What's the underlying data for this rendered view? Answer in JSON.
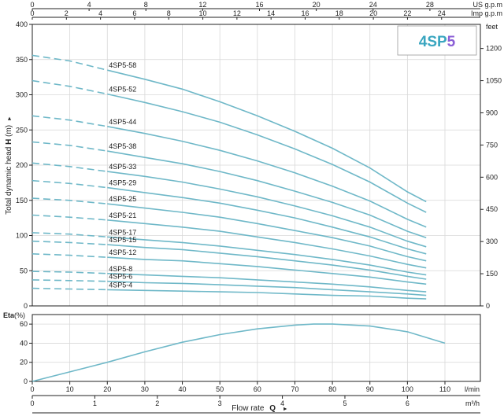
{
  "chart_data": [
    {
      "type": "line",
      "id": "head",
      "title_part1": "4SP",
      "title_part2": "5",
      "ylabel": "Total dynamic head",
      "ylabel_bold": "H",
      "ylabel_unit": "(m)",
      "ylim": [
        0,
        400
      ],
      "yticks": [
        0,
        50,
        100,
        150,
        200,
        250,
        300,
        350,
        400
      ],
      "xlim": [
        0,
        110
      ],
      "xticks": [
        0,
        10,
        20,
        30,
        40,
        50,
        60,
        70,
        80,
        90,
        100,
        110
      ],
      "x_unit": "l/min",
      "right_axis": {
        "label": "feet",
        "ticks": [
          0,
          150,
          300,
          450,
          600,
          750,
          900,
          1050,
          1200
        ]
      },
      "top_axes": [
        {
          "label": "US g.p.m",
          "max": 28,
          "ticks": [
            0,
            4,
            8,
            12,
            16,
            20,
            24,
            28
          ]
        },
        {
          "label": "Imp g.p.m",
          "max": 24,
          "ticks": [
            0,
            2,
            4,
            6,
            8,
            10,
            12,
            14,
            16,
            18,
            20,
            22,
            24
          ]
        }
      ],
      "dashed_until_x": 20,
      "x": [
        0,
        10,
        20,
        30,
        40,
        50,
        60,
        70,
        80,
        90,
        100,
        105
      ],
      "series": [
        {
          "name": "4SP5-58",
          "values": [
            356,
            348,
            335,
            322,
            308,
            290,
            270,
            248,
            224,
            196,
            162,
            148
          ]
        },
        {
          "name": "4SP5-52",
          "values": [
            320,
            312,
            301,
            289,
            276,
            261,
            243,
            223,
            201,
            176,
            146,
            133
          ]
        },
        {
          "name": "4SP5-44",
          "values": [
            270,
            264,
            255,
            245,
            234,
            221,
            206,
            189,
            170,
            149,
            123,
            112
          ]
        },
        {
          "name": "4SP5-38",
          "values": [
            233,
            228,
            220,
            211,
            202,
            191,
            178,
            163,
            147,
            129,
            106,
            97
          ]
        },
        {
          "name": "4SP5-33",
          "values": [
            203,
            198,
            191,
            184,
            176,
            166,
            155,
            142,
            128,
            112,
            92,
            84
          ]
        },
        {
          "name": "4SP5-29",
          "values": [
            178,
            174,
            168,
            161,
            154,
            146,
            136,
            125,
            112,
            98,
            81,
            74
          ]
        },
        {
          "name": "4SP5-25",
          "values": [
            153,
            150,
            145,
            139,
            133,
            126,
            117,
            107,
            97,
            85,
            70,
            64
          ]
        },
        {
          "name": "4SP5-21",
          "values": [
            129,
            126,
            122,
            117,
            112,
            106,
            98,
            90,
            81,
            71,
            59,
            54
          ]
        },
        {
          "name": "4SP5-17",
          "values": [
            104,
            102,
            98,
            94,
            90,
            85,
            79,
            73,
            66,
            58,
            48,
            44
          ]
        },
        {
          "name": "4SP5-15",
          "values": [
            92,
            90,
            87,
            83,
            80,
            75,
            70,
            64,
            58,
            51,
            42,
            38
          ]
        },
        {
          "name": "4SP5-12",
          "values": [
            74,
            72,
            69,
            66,
            64,
            60,
            56,
            51,
            46,
            41,
            34,
            31
          ]
        },
        {
          "name": "4SP5-8",
          "values": [
            49,
            48,
            46,
            44,
            42,
            40,
            37,
            34,
            31,
            27,
            22,
            20
          ]
        },
        {
          "name": "4SP5-6",
          "values": [
            37,
            36,
            35,
            33,
            32,
            30,
            28,
            26,
            23,
            20,
            17,
            15
          ]
        },
        {
          "name": "4SP5-4",
          "values": [
            25,
            24,
            23,
            22,
            21,
            20,
            19,
            17,
            15,
            14,
            11,
            10
          ]
        }
      ]
    },
    {
      "type": "line",
      "id": "efficiency",
      "ylabel": "Eta",
      "ylabel_unit": "(%)",
      "ylim": [
        0,
        70
      ],
      "yticks": [
        0,
        20,
        40,
        60
      ],
      "xlim": [
        0,
        110
      ],
      "xticks": [
        0,
        10,
        20,
        30,
        40,
        50,
        60,
        70,
        80,
        90,
        100,
        110
      ],
      "x_unit": "l/min",
      "x": [
        0,
        10,
        20,
        30,
        40,
        50,
        60,
        70,
        75,
        80,
        90,
        100,
        105,
        110
      ],
      "values": [
        0,
        10,
        20,
        31,
        41,
        49,
        55,
        59,
        60,
        60,
        58,
        52,
        46,
        40
      ]
    }
  ],
  "bottom_axis": {
    "ticks": [
      0,
      1,
      2,
      3,
      4,
      5,
      6
    ],
    "max": 6.6,
    "unit": "m³/h"
  },
  "xlabel": "Flow rate",
  "xlabel_bold": "Q",
  "colors": {
    "curve": "#6fb8c8",
    "title1": "#3aa6c0",
    "title2": "#8b5fd6"
  }
}
